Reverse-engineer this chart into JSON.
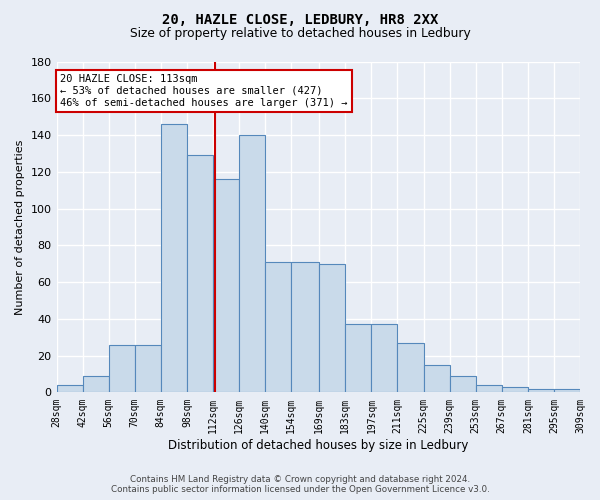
{
  "title1": "20, HAZLE CLOSE, LEDBURY, HR8 2XX",
  "title2": "Size of property relative to detached houses in Ledbury",
  "xlabel": "Distribution of detached houses by size in Ledbury",
  "ylabel": "Number of detached properties",
  "bar_edges": [
    28,
    42,
    56,
    70,
    84,
    98,
    112,
    126,
    140,
    154,
    169,
    183,
    197,
    211,
    225,
    239,
    253,
    267,
    281,
    295,
    309
  ],
  "bar_heights": [
    4,
    9,
    26,
    26,
    146,
    129,
    116,
    140,
    71,
    71,
    70,
    37,
    37,
    27,
    15,
    9,
    4,
    3,
    2,
    2
  ],
  "tick_labels": [
    "28sqm",
    "42sqm",
    "56sqm",
    "70sqm",
    "84sqm",
    "98sqm",
    "112sqm",
    "126sqm",
    "140sqm",
    "154sqm",
    "169sqm",
    "183sqm",
    "197sqm",
    "211sqm",
    "225sqm",
    "239sqm",
    "253sqm",
    "267sqm",
    "281sqm",
    "295sqm",
    "309sqm"
  ],
  "bar_color": "#c9daea",
  "bar_edge_color": "#5588bb",
  "bg_color": "#e8edf5",
  "grid_color": "#ffffff",
  "vline_x": 113,
  "vline_color": "#cc0000",
  "annotation_line1": "20 HAZLE CLOSE: 113sqm",
  "annotation_line2": "← 53% of detached houses are smaller (427)",
  "annotation_line3": "46% of semi-detached houses are larger (371) →",
  "annotation_box_color": "#ffffff",
  "annotation_box_edge": "#cc0000",
  "footnote": "Contains HM Land Registry data © Crown copyright and database right 2024.\nContains public sector information licensed under the Open Government Licence v3.0.",
  "ylim_max": 180,
  "yticks": [
    0,
    20,
    40,
    60,
    80,
    100,
    120,
    140,
    160,
    180
  ]
}
